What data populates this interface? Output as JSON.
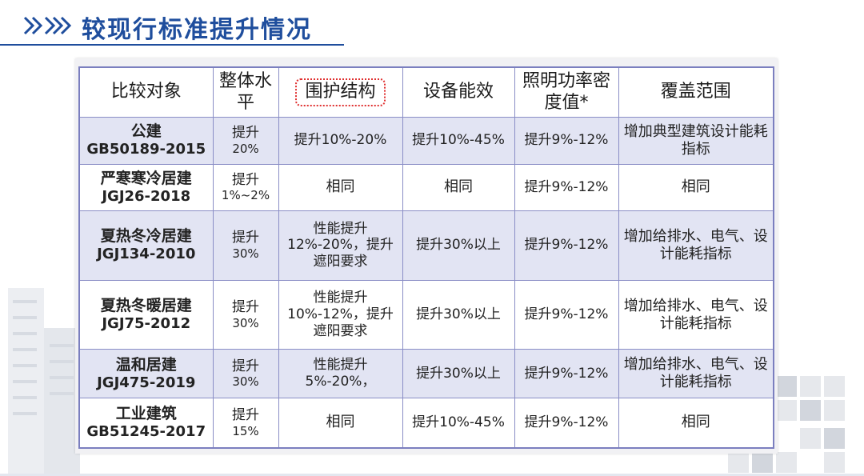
{
  "title": "较现行标准提升情况",
  "table": {
    "headers": {
      "object": "比较对象",
      "level": "整体水平",
      "envelope": "围护结构",
      "equipment": "设备能效",
      "lighting": "照明功率密度值*",
      "coverage": "覆盖范围"
    },
    "rows": [
      {
        "name": "公建",
        "std": "GB50189-2015",
        "level": "提升",
        "pct": "20%",
        "envelope": "提升10%-20%",
        "equipment": "提升10%-45%",
        "lighting": "提升9%-12%",
        "coverage": "增加典型建筑设计能耗指标"
      },
      {
        "name": "严寒寒冷居建",
        "std": "JGJ26-2018",
        "level": "提升",
        "pct": "1%~2%",
        "envelope": "相同",
        "equipment": "相同",
        "lighting": "提升9%-12%",
        "coverage": "相同"
      },
      {
        "name": "夏热冬冷居建",
        "std": "JGJ134-2010",
        "level": "提升",
        "pct": "30%",
        "envelope": "性能提升12%-20%，提升遮阳要求",
        "equipment": "提升30%以上",
        "lighting": "提升9%-12%",
        "coverage": "增加给排水、电气、设计能耗指标"
      },
      {
        "name": "夏热冬暖居建",
        "std": "JGJ75-2012",
        "level": "提升",
        "pct": "30%",
        "envelope": "性能提升10%-12%，提升遮阳要求",
        "equipment": "提升30%以上",
        "lighting": "提升9%-12%",
        "coverage": "增加给排水、电气、设计能耗指标"
      },
      {
        "name": "温和居建",
        "std": "JGJ475-2019",
        "level": "提升",
        "pct": "30%",
        "envelope": "性能提升5%-20%，",
        "equipment": "提升30%以上",
        "lighting": "提升9%-12%",
        "coverage": "增加给排水、电气、设计能耗指标"
      },
      {
        "name": "工业建筑",
        "std": "GB51245-2017",
        "level": "提升",
        "pct": "15%",
        "envelope": "相同",
        "equipment": "提升10%-45%",
        "lighting": "提升9%-12%",
        "coverage": "相同"
      }
    ]
  },
  "colors": {
    "title": "#1f4e9d",
    "table_border": "#8a8ec6",
    "row_shade": "#e2e4f3",
    "highlight_box": "#e03030"
  }
}
